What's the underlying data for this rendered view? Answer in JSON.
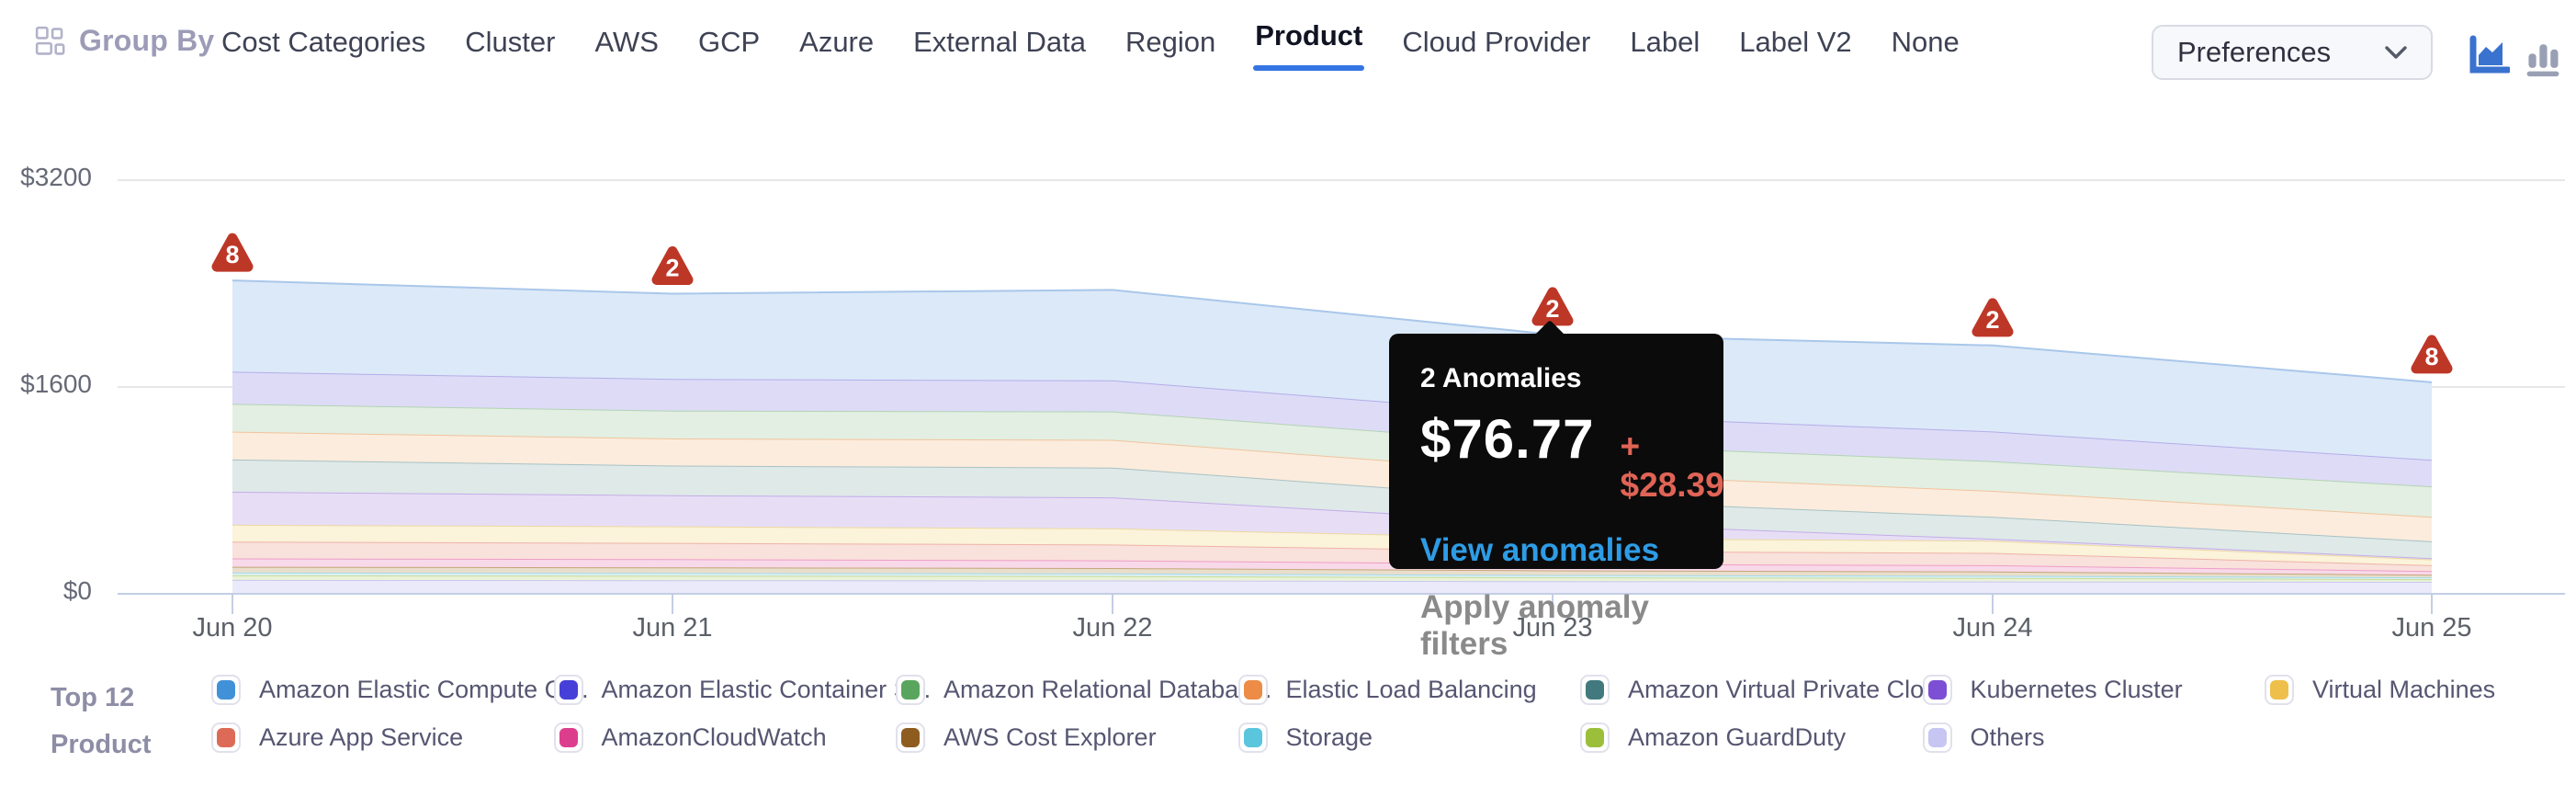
{
  "header": {
    "group_by_label": "Group By",
    "group_by_icon": "grid-layout-icon",
    "tabs": [
      "Cost Categories",
      "Cluster",
      "AWS",
      "GCP",
      "Azure",
      "External Data",
      "Region",
      "Product",
      "Cloud Provider",
      "Label",
      "Label V2",
      "None"
    ],
    "active_tab": "Product",
    "preferences_label": "Preferences",
    "preferences_icon": "chevron-down-icon",
    "view_toggle": {
      "area_chart_icon": "area-chart-icon",
      "bar_chart_icon": "bar-chart-icon",
      "active_view": "area"
    }
  },
  "colors": {
    "active_tab_underline": "#3575e3",
    "anomaly_red": "#bd3727",
    "link_blue": "#2e9ce5",
    "delta_red": "#e06456",
    "area_icon_blue": "#3a72cf",
    "bar_icon_gray": "#9aa0b4"
  },
  "tooltip": {
    "title": "2 Anomalies",
    "amount": "$76.77",
    "delta": "+ $28.39",
    "link": "View anomalies",
    "secondary": "Apply anomaly filters",
    "anchor_date": "Jun 23"
  },
  "legend": {
    "group_label_line1": "Top 12",
    "group_label_line2": "Product",
    "items": [
      {
        "label": "Amazon Elastic Compute Cl...",
        "color": "#4191d9"
      },
      {
        "label": "Amazon Elastic Container S...",
        "color": "#4640d8"
      },
      {
        "label": "Amazon Relational Databas...",
        "color": "#5aa55e"
      },
      {
        "label": "Elastic Load Balancing",
        "color": "#ed8c47"
      },
      {
        "label": "Amazon Virtual Private Cloud",
        "color": "#41797e"
      },
      {
        "label": "Kubernetes Cluster",
        "color": "#7c4fd4"
      },
      {
        "label": "Virtual Machines",
        "color": "#eec04b"
      },
      {
        "label": "Azure App Service",
        "color": "#dd6a57"
      },
      {
        "label": "AmazonCloudWatch",
        "color": "#dd3d8d"
      },
      {
        "label": "AWS Cost Explorer",
        "color": "#8f5c1f"
      },
      {
        "label": "Storage",
        "color": "#59c6dd"
      },
      {
        "label": "Amazon GuardDuty",
        "color": "#9cbf3b"
      },
      {
        "label": "Others",
        "color": "#c7c5f2"
      }
    ]
  },
  "chart_data": {
    "type": "area",
    "stacked": true,
    "stack_order": "top-to-bottom",
    "x": [
      "Jun 20",
      "Jun 21",
      "Jun 22",
      "Jun 23",
      "Jun 24",
      "Jun 25"
    ],
    "y_ticks": [
      {
        "label": "$3200",
        "value": 3200
      },
      {
        "label": "$1600",
        "value": 1600
      },
      {
        "label": "$0",
        "value": 0
      }
    ],
    "ylim": [
      0,
      3200
    ],
    "unit": "$",
    "grid": true,
    "legend_position": "bottom",
    "series": [
      {
        "name": "Amazon Elastic Compute Cl...",
        "fill": "#dce9f8",
        "stroke": "#a9c7ea",
        "values": [
          705,
          660,
          700,
          620,
          665,
          600
        ]
      },
      {
        "name": "Amazon Elastic Container S...",
        "fill": "#dedbf7",
        "stroke": "#b3aee8",
        "values": [
          250,
          245,
          240,
          225,
          230,
          205
        ]
      },
      {
        "name": "Amazon Relational Databas...",
        "fill": "#e3efe2",
        "stroke": "#b2d4b4",
        "values": [
          215,
          215,
          220,
          225,
          230,
          235
        ]
      },
      {
        "name": "Elastic Load Balancing",
        "fill": "#fcecdd",
        "stroke": "#f0c49e",
        "values": [
          215,
          210,
          215,
          205,
          200,
          190
        ]
      },
      {
        "name": "Amazon Virtual Private Cloud",
        "fill": "#dfe9e8",
        "stroke": "#a8c2c3",
        "values": [
          250,
          230,
          230,
          180,
          170,
          130
        ]
      },
      {
        "name": "Kubernetes Cluster",
        "fill": "#e7def6",
        "stroke": "#c3ade7",
        "values": [
          255,
          240,
          240,
          120,
          15,
          10
        ]
      },
      {
        "name": "Virtual Machines",
        "fill": "#fbf3da",
        "stroke": "#ecd9a0",
        "values": [
          130,
          128,
          125,
          100,
          95,
          45
        ]
      },
      {
        "name": "Azure App Service",
        "fill": "#f9e1dc",
        "stroke": "#eeb3a8",
        "values": [
          130,
          126,
          122,
          100,
          95,
          45
        ]
      },
      {
        "name": "AmazonCloudWatch",
        "fill": "#f8d9e9",
        "stroke": "#ee9ec6",
        "values": [
          65,
          63,
          60,
          50,
          48,
          28
        ]
      },
      {
        "name": "AWS Cost Explorer",
        "fill": "#e9decc",
        "stroke": "#c4a678",
        "values": [
          45,
          44,
          42,
          36,
          34,
          21
        ]
      },
      {
        "name": "Storage",
        "fill": "#def1f6",
        "stroke": "#a3dbe8",
        "values": [
          21,
          21,
          20,
          18,
          16,
          14
        ]
      },
      {
        "name": "Amazon GuardDuty",
        "fill": "#eaf2d8",
        "stroke": "#c6dc96",
        "values": [
          36,
          35,
          34,
          30,
          28,
          21
        ]
      },
      {
        "name": "Others",
        "fill": "#ebeafa",
        "stroke": "#c9c7f0",
        "values": [
          100,
          98,
          96,
          90,
          88,
          85
        ]
      }
    ],
    "anomalies": [
      {
        "date": "Jun 20",
        "count": 8
      },
      {
        "date": "Jun 21",
        "count": 2
      },
      {
        "date": "Jun 23",
        "count": 2
      },
      {
        "date": "Jun 24",
        "count": 2
      },
      {
        "date": "Jun 25",
        "count": 8
      }
    ]
  }
}
